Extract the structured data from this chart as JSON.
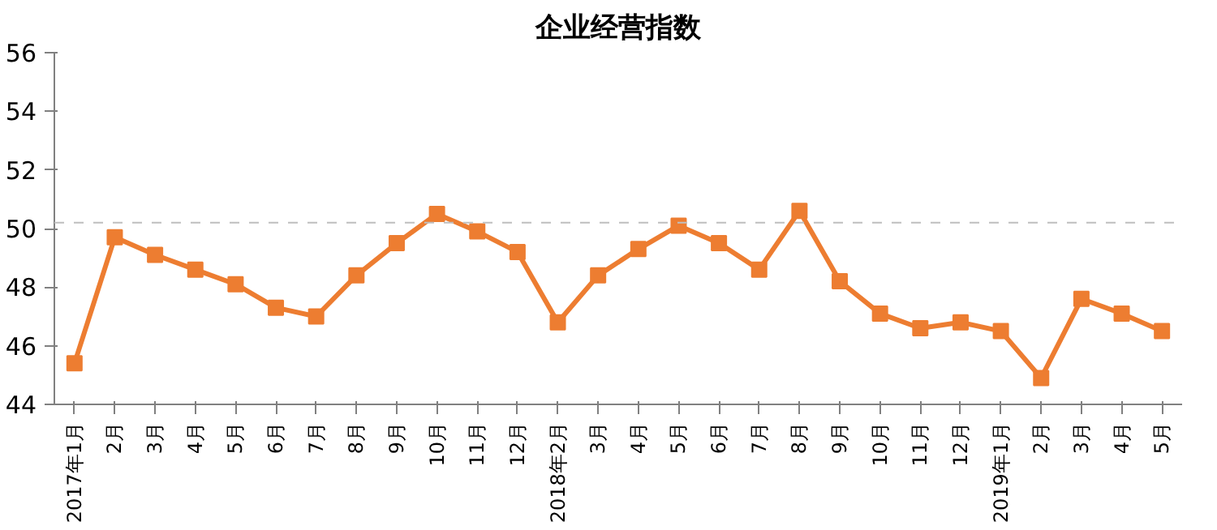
{
  "chart_data": {
    "type": "line",
    "title": "企业经营指数",
    "categories": [
      "2017年1月",
      "2月",
      "3月",
      "4月",
      "5月",
      "6月",
      "7月",
      "8月",
      "9月",
      "10月",
      "11月",
      "12月",
      "2018年2月",
      "3月",
      "4月",
      "5月",
      "6月",
      "7月",
      "8月",
      "9月",
      "10月",
      "11月",
      "12月",
      "2019年1月",
      "2月",
      "3月",
      "4月",
      "5月"
    ],
    "series": [
      {
        "color": "#ed7d31",
        "values": [
          45.4,
          49.7,
          49.1,
          48.6,
          48.1,
          47.3,
          47.0,
          48.4,
          49.5,
          50.5,
          49.9,
          49.2,
          46.8,
          48.4,
          49.3,
          50.1,
          49.5,
          48.6,
          50.6,
          48.2,
          47.1,
          46.6,
          46.8,
          46.5,
          44.9,
          47.6,
          47.1,
          46.5
        ]
      }
    ],
    "ylim": [
      44,
      56
    ],
    "yticks": [
      44,
      46,
      48,
      50,
      52,
      54,
      56
    ],
    "ref_lines": [
      {
        "axis": "y",
        "value": 50.2,
        "color": "#bfbfbf",
        "line_style": "dashed"
      }
    ],
    "marker": "square",
    "line_style": "solid",
    "grid": false
  }
}
